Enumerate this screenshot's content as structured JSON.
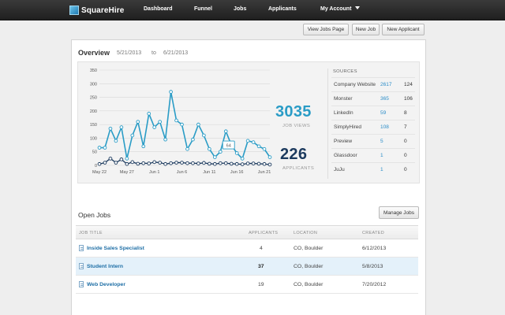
{
  "nav": {
    "logo": "SquareHire",
    "items": [
      {
        "label": "Dashboard"
      },
      {
        "label": "Funnel"
      },
      {
        "label": "Jobs"
      },
      {
        "label": "Applicants"
      }
    ],
    "account": "My Account"
  },
  "toolbar": {
    "view_jobs_page": "View Jobs Page",
    "new_job": "New Job",
    "new_applicant": "New Applicant"
  },
  "overview": {
    "title": "Overview",
    "date_from": "5/21/2013",
    "date_sep": "to",
    "date_to": "6/21/2013",
    "job_views": "3035",
    "job_views_label": "JOB VIEWS",
    "applicants": "226",
    "applicants_label": "APPLICANTS",
    "tooltip": "64"
  },
  "colors": {
    "views": "#2a9cc6",
    "applicants": "#1c3a5e",
    "topbar": "#2a2a2a"
  },
  "chart_data": {
    "type": "line",
    "x_ticks": [
      "May 22",
      "May 27",
      "Jun 1",
      "Jun 6",
      "Jun 11",
      "Jun 16",
      "Jun 21"
    ],
    "y_ticks": [
      0,
      50,
      100,
      150,
      200,
      250,
      300,
      350
    ],
    "ylim": [
      0,
      350
    ],
    "grid": true,
    "series": [
      {
        "name": "Job Views",
        "values": [
          65,
          65,
          135,
          90,
          140,
          25,
          110,
          160,
          70,
          190,
          140,
          160,
          95,
          270,
          165,
          150,
          60,
          95,
          150,
          110,
          60,
          30,
          50,
          125,
          75,
          45,
          25,
          90,
          85,
          70,
          60,
          30
        ]
      },
      {
        "name": "Applicants",
        "values": [
          5,
          10,
          25,
          10,
          22,
          5,
          12,
          6,
          8,
          7,
          12,
          10,
          5,
          8,
          10,
          10,
          8,
          8,
          7,
          9,
          6,
          5,
          8,
          8,
          6,
          5,
          4,
          7,
          7,
          6,
          5,
          3
        ]
      }
    ]
  },
  "sources": {
    "header": "SOURCES",
    "rows": [
      {
        "name": "Company Website",
        "views": "2617",
        "applicants": "124"
      },
      {
        "name": "Monster",
        "views": "365",
        "applicants": "106"
      },
      {
        "name": "LinkedIn",
        "views": "59",
        "applicants": "8"
      },
      {
        "name": "SimplyHired",
        "views": "108",
        "applicants": "7"
      },
      {
        "name": "Preview",
        "views": "5",
        "applicants": "0"
      },
      {
        "name": "Glassdoor",
        "views": "1",
        "applicants": "0"
      },
      {
        "name": "JuJu",
        "views": "1",
        "applicants": "0"
      }
    ]
  },
  "open_jobs": {
    "title": "Open Jobs",
    "manage_button": "Manage Jobs",
    "columns": {
      "job_title": "JOB TITLE",
      "applicants": "APPLICANTS",
      "location": "LOCATION",
      "created": "CREATED"
    },
    "rows": [
      {
        "title": "Inside Sales Specialist",
        "applicants": "4",
        "location": "CO, Boulder",
        "created": "6/12/2013"
      },
      {
        "title": "Student Intern",
        "applicants": "37",
        "location": "CO, Boulder",
        "created": "5/8/2013"
      },
      {
        "title": "Web Developer",
        "applicants": "19",
        "location": "CO, Boulder",
        "created": "7/20/2012"
      }
    ]
  }
}
